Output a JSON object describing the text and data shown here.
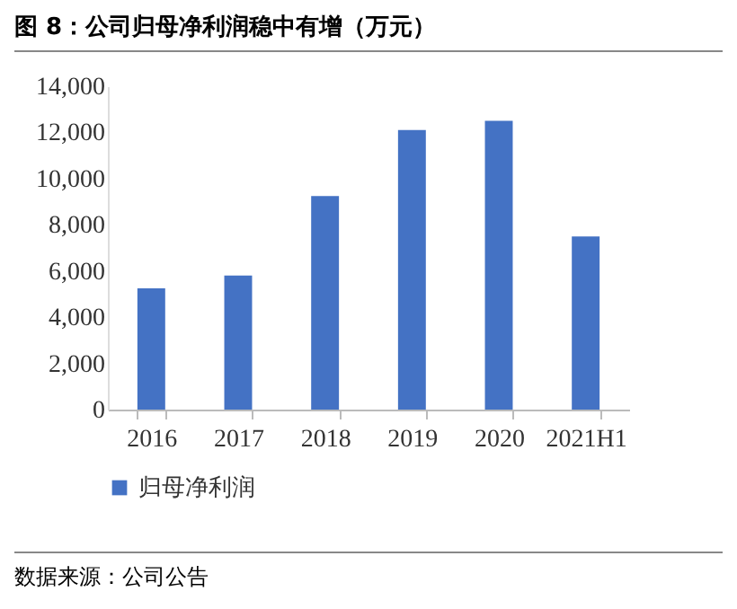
{
  "chart_data": {
    "type": "bar",
    "title": "图 8：公司归母净利润稳中有增（万元）",
    "categories": [
      "2016",
      "2017",
      "2018",
      "2019",
      "2020",
      "2021H1"
    ],
    "series": [
      {
        "name": "归母净利润",
        "color": "#4472c4",
        "values": [
          5250,
          5800,
          9250,
          12100,
          12500,
          7500
        ]
      }
    ],
    "ylim": [
      0,
      14000
    ],
    "yticks": [
      0,
      {
        "value": 2000,
        "label": "2,000"
      },
      {
        "value": 4000,
        "label": "4,000"
      },
      {
        "value": 6000,
        "label": "6,000"
      },
      {
        "value": 8000,
        "label": "8,000"
      },
      {
        "value": 10000,
        "label": "10,000"
      },
      {
        "value": 12000,
        "label": "12,000"
      },
      {
        "value": 14000,
        "label": "14,000"
      }
    ],
    "grid": false,
    "legend": "bottom",
    "annotations": [
      "数据来源：公司公告"
    ]
  }
}
